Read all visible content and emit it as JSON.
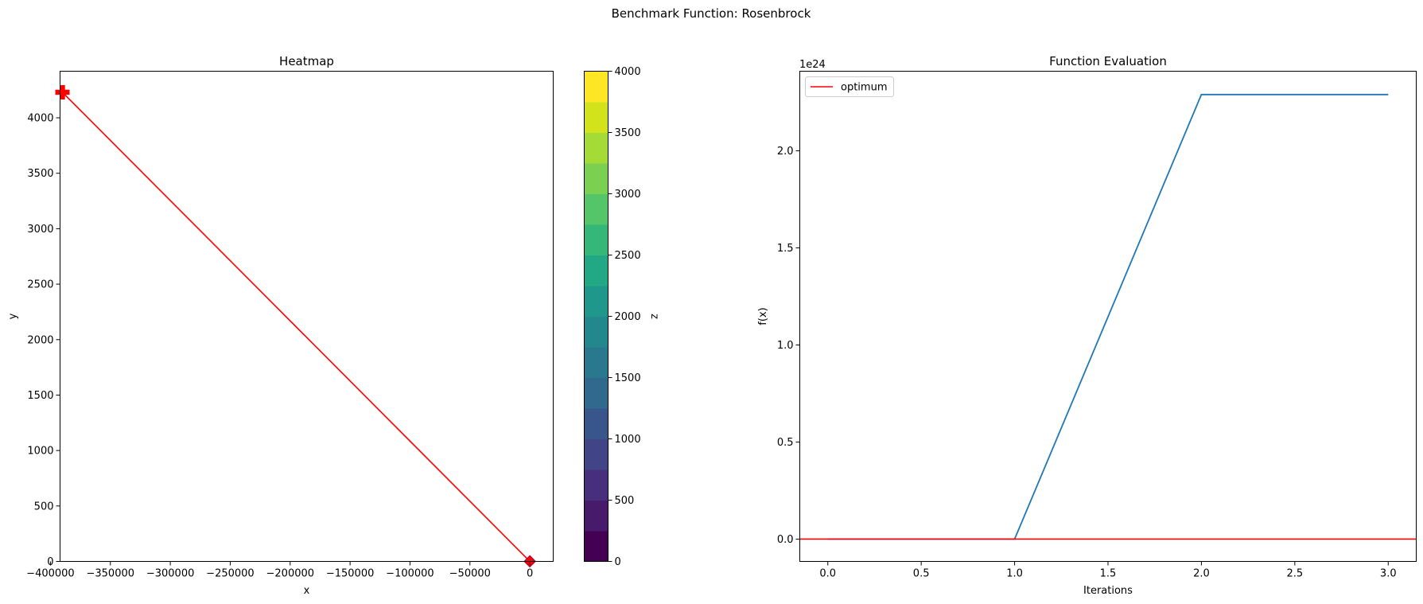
{
  "suptitle": "Benchmark Function: Rosenbrock",
  "chart_data": [
    {
      "type": "heatmap",
      "title": "Heatmap",
      "xlabel": "x",
      "ylabel": "y",
      "xlim": [
        -392000,
        19500
      ],
      "ylim": [
        0,
        4420
      ],
      "xticks": [
        -400000,
        -350000,
        -300000,
        -250000,
        -200000,
        -150000,
        -100000,
        -50000,
        0
      ],
      "xticklabels": [
        "−400000",
        "−350000",
        "−300000",
        "−250000",
        "−200000",
        "−150000",
        "−100000",
        "−50000",
        "0"
      ],
      "yticks": [
        0,
        500,
        1000,
        1500,
        2000,
        2500,
        3000,
        3500,
        4000
      ],
      "yticklabels": [
        "0",
        "500",
        "1000",
        "1500",
        "2000",
        "2500",
        "3000",
        "3500",
        "4000"
      ],
      "colorbar": {
        "label": "z",
        "range": [
          0,
          4000
        ],
        "levels": 16,
        "ticks": [
          0,
          500,
          1000,
          1500,
          2000,
          2500,
          3000,
          3500,
          4000
        ],
        "ticklabels": [
          "0",
          "500",
          "1000",
          "1500",
          "2000",
          "2500",
          "3000",
          "3500",
          "4000"
        ],
        "colors": [
          "#440154",
          "#481a6c",
          "#472f7d",
          "#414487",
          "#39568c",
          "#31688e",
          "#2a788e",
          "#23888e",
          "#1f988b",
          "#22a884",
          "#35b779",
          "#54c568",
          "#7ad151",
          "#a5db36",
          "#d2e21b",
          "#fde725"
        ]
      },
      "path": {
        "color": "#ff0000",
        "points": [
          [
            -390000,
            4230
          ],
          [
            1,
            1
          ]
        ]
      },
      "markers": [
        {
          "name": "start",
          "shape": "plus",
          "x": -390000,
          "y": 4230,
          "color": "#ff0000"
        },
        {
          "name": "end",
          "shape": "diamond",
          "x": 1,
          "y": 1,
          "color": "#ff0000"
        }
      ],
      "grid": false
    },
    {
      "type": "line",
      "title": "Function Evaluation",
      "xlabel": "Iterations",
      "ylabel": "f(x)",
      "offset_text": "1e24",
      "xlim": [
        -0.15,
        3.15
      ],
      "ylim": [
        -0.115,
        2.41
      ],
      "xticks": [
        0,
        0.5,
        1,
        1.5,
        2,
        2.5,
        3
      ],
      "xticklabels": [
        "0.0",
        "0.5",
        "1.0",
        "1.5",
        "2.0",
        "2.5",
        "3.0"
      ],
      "yticks": [
        0,
        0.5,
        1,
        1.5,
        2
      ],
      "yticklabels": [
        "0.0",
        "0.5",
        "1.0",
        "1.5",
        "2.0"
      ],
      "series": [
        {
          "x": [
            0,
            1,
            2,
            3
          ],
          "values": [
            0,
            0,
            2.29,
            2.29
          ],
          "color": "#1f77b4"
        }
      ],
      "hlines": [
        {
          "name": "optimum",
          "value": 0,
          "color": "#ff0000"
        }
      ],
      "legend": {
        "location": "top-left",
        "entries": [
          "optimum"
        ]
      },
      "grid": false
    }
  ]
}
